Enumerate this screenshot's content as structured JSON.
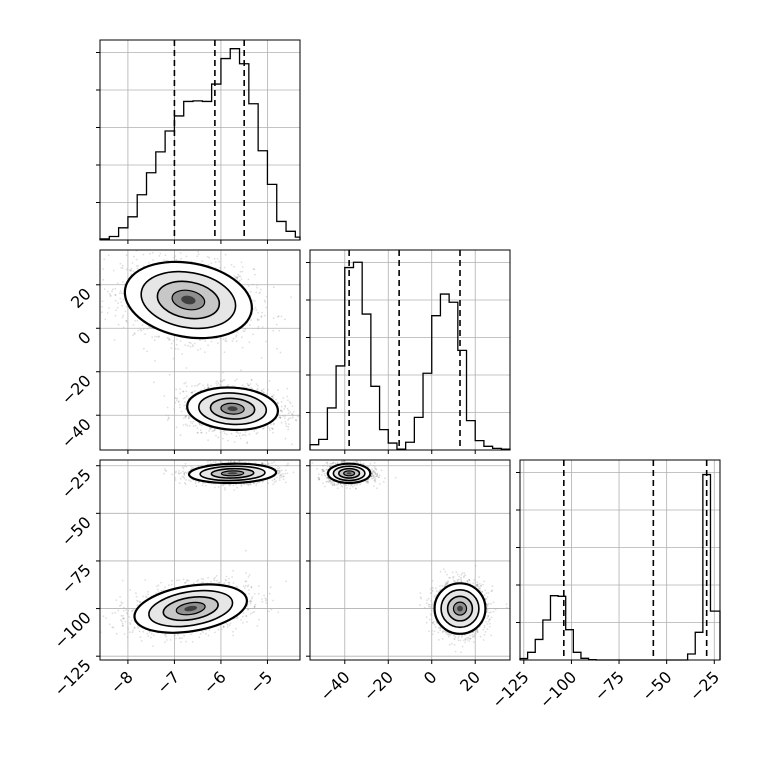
{
  "chart_data": {
    "type": "corner",
    "grid": true,
    "params": [
      {
        "range": [
          -8.6,
          -4.3
        ],
        "ticks": [
          -8,
          -7,
          -6,
          -5
        ],
        "tick_labels": [
          "−8",
          "−7",
          "−6",
          "−5"
        ],
        "quantiles": [
          -7.0,
          -6.13,
          -5.5
        ],
        "hist_edges": [
          -8.6,
          -8.4,
          -8.2,
          -8.0,
          -7.8,
          -7.6,
          -7.4,
          -7.2,
          -7.0,
          -6.8,
          -6.6,
          -6.4,
          -6.2,
          -6.0,
          -5.8,
          -5.6,
          -5.4,
          -5.2,
          -5.0,
          -4.8,
          -4.6,
          -4.4,
          -4.3
        ],
        "hist_counts": [
          0.2,
          0.6,
          2.1,
          4.0,
          7.8,
          11.6,
          15.2,
          18.8,
          21.4,
          23.9,
          24.0,
          23.9,
          26.9,
          31.3,
          33.0,
          30.4,
          23.5,
          15.4,
          9.6,
          3.2,
          1.5,
          0.5
        ],
        "hist_ymax": 34.5
      },
      {
        "range": [
          -56,
          36
        ],
        "ticks": [
          -40,
          -20,
          0,
          20
        ],
        "tick_labels": [
          "−40",
          "−20",
          "0",
          "20"
        ],
        "quantiles": [
          -38,
          -15,
          13
        ],
        "hist_edges": [
          -56,
          -52,
          -48,
          -44,
          -40,
          -36,
          -32,
          -28,
          -24,
          -20,
          -16,
          -12,
          -8,
          -4,
          0,
          4,
          8,
          12,
          16,
          20,
          24,
          28,
          32,
          36
        ],
        "hist_counts": [
          1.3,
          2.6,
          10.3,
          20.6,
          44.7,
          46.0,
          33.3,
          15.6,
          5.0,
          1.7,
          0.2,
          1.9,
          8.0,
          18.8,
          32.9,
          38.2,
          36.2,
          24.4,
          7.2,
          2.3,
          0.9,
          0.4,
          0.2
        ],
        "hist_ymax": 49.0
      },
      {
        "range": [
          -127,
          -22
        ],
        "ticks": [
          -125,
          -100,
          -75,
          -50,
          -25
        ],
        "tick_labels": [
          "−125",
          "−100",
          "−75",
          "−50",
          "−25"
        ],
        "quantiles": [
          -104,
          -57,
          -29
        ],
        "hist_edges": [
          -127,
          -123,
          -119,
          -115,
          -111,
          -107,
          -103,
          -99,
          -95,
          -91,
          -87,
          -83,
          -79,
          -75,
          -71,
          -67,
          -63,
          -59,
          -55,
          -51,
          -47,
          -43,
          -39,
          -35,
          -31,
          -27,
          -22
        ],
        "hist_counts": [
          0.5,
          2.7,
          7.2,
          14.0,
          22.5,
          22.3,
          10.6,
          2.7,
          0.6,
          0.1,
          0,
          0,
          0,
          0,
          0,
          0,
          0,
          0,
          0,
          0,
          0,
          0,
          2.1,
          9.7,
          64.9,
          17.1
        ],
        "hist_ymax": 70.0
      }
    ],
    "joint_clusters": [
      {
        "params": [
          0,
          1
        ],
        "center": [
          -6.7,
          13
        ],
        "sd": [
          0.7,
          9
        ],
        "rho": -0.2,
        "n": 1800
      },
      {
        "params": [
          0,
          1
        ],
        "center": [
          -5.75,
          -37
        ],
        "sd": [
          0.5,
          5
        ],
        "rho": -0.1,
        "n": 1800
      },
      {
        "params": [
          0,
          2
        ],
        "center": [
          -5.75,
          -29
        ],
        "sd": [
          0.48,
          2.6
        ],
        "rho": 0.1,
        "n": 1600
      },
      {
        "params": [
          0,
          2
        ],
        "center": [
          -6.65,
          -100
        ],
        "sd": [
          0.62,
          6.5
        ],
        "rho": 0.32,
        "n": 1800
      },
      {
        "params": [
          1,
          2
        ],
        "center": [
          -38,
          -29
        ],
        "sd": [
          5,
          2.6
        ],
        "rho": 0.0,
        "n": 1600
      },
      {
        "params": [
          1,
          2
        ],
        "center": [
          13,
          -100
        ],
        "sd": [
          6,
          6.8
        ],
        "rho": 0.0,
        "n": 1800
      }
    ]
  }
}
